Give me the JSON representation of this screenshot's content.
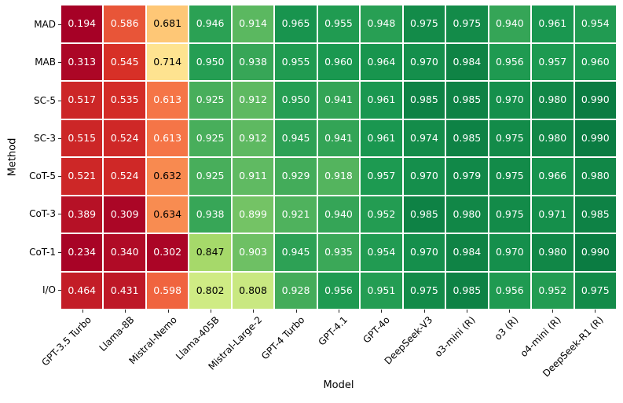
{
  "chart_data": {
    "type": "heatmap",
    "title": "",
    "xlabel": "Model",
    "ylabel": "Method",
    "x_categories": [
      "GPT-3.5 Turbo",
      "Llama-8B",
      "Mistral-Nemo",
      "Llama-405B",
      "Mistral-Large-2",
      "GPT-4 Turbo",
      "GPT-4.1",
      "GPT-4o",
      "DeepSeek-V3",
      "o3-mini (R)",
      "o3 (R)",
      "o4-mini (R)",
      "DeepSeek-R1 (R)"
    ],
    "y_categories": [
      "MAD",
      "MAB",
      "SC-5",
      "SC-3",
      "CoT-5",
      "CoT-3",
      "CoT-1",
      "I/O"
    ],
    "values": [
      [
        0.194,
        0.586,
        0.681,
        0.946,
        0.914,
        0.965,
        0.955,
        0.948,
        0.975,
        0.975,
        0.94,
        0.961,
        0.954
      ],
      [
        0.313,
        0.545,
        0.714,
        0.95,
        0.938,
        0.955,
        0.96,
        0.964,
        0.97,
        0.984,
        0.956,
        0.957,
        0.96
      ],
      [
        0.517,
        0.535,
        0.613,
        0.925,
        0.912,
        0.95,
        0.941,
        0.961,
        0.985,
        0.985,
        0.97,
        0.98,
        0.99
      ],
      [
        0.515,
        0.524,
        0.613,
        0.925,
        0.912,
        0.945,
        0.941,
        0.961,
        0.974,
        0.985,
        0.975,
        0.98,
        0.99
      ],
      [
        0.521,
        0.524,
        0.632,
        0.925,
        0.911,
        0.929,
        0.918,
        0.957,
        0.97,
        0.979,
        0.975,
        0.966,
        0.98
      ],
      [
        0.389,
        0.309,
        0.634,
        0.938,
        0.899,
        0.921,
        0.94,
        0.952,
        0.985,
        0.98,
        0.975,
        0.971,
        0.985
      ],
      [
        0.234,
        0.34,
        0.302,
        0.847,
        0.903,
        0.945,
        0.935,
        0.954,
        0.97,
        0.984,
        0.97,
        0.98,
        0.99
      ],
      [
        0.464,
        0.431,
        0.598,
        0.802,
        0.808,
        0.928,
        0.956,
        0.951,
        0.975,
        0.985,
        0.956,
        0.952,
        0.975
      ]
    ],
    "value_min": 0.194,
    "value_max": 0.99,
    "value_format_decimals": 3,
    "colormap": "RdYlGn",
    "colormap_low_hex": "#a50026",
    "colormap_mid_hex": "#ffffbf",
    "colormap_high_hex": "#006837",
    "gridline_color": "#ffffff",
    "annotation_colors": {
      "dark_cells": "#ffffff",
      "light_cells": "#000000"
    },
    "legend": "none",
    "grid": "off"
  }
}
